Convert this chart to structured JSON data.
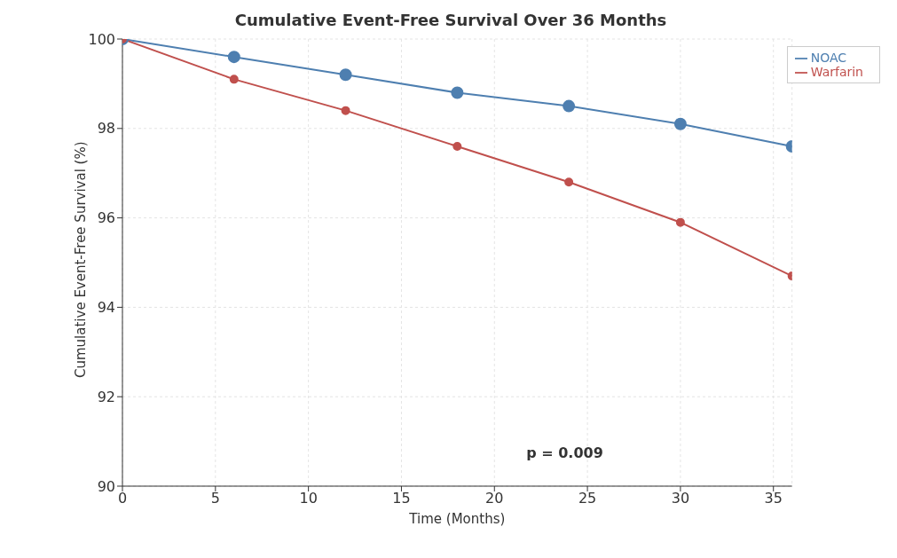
{
  "chart_data": {
    "type": "line",
    "title": "Cumulative Event-Free Survival Over 36 Months",
    "xlabel": "Time (Months)",
    "ylabel": "Cumulative Event-Free Survival (%)",
    "x": [
      0,
      6,
      12,
      18,
      24,
      30,
      36
    ],
    "series": [
      {
        "name": "NOAC",
        "color": "#4e7fb0",
        "values": [
          100,
          99.6,
          99.2,
          98.8,
          98.5,
          98.1,
          97.6
        ]
      },
      {
        "name": "Warfarin",
        "color": "#c0504d",
        "values": [
          100,
          99.1,
          98.4,
          97.6,
          96.8,
          95.9,
          94.7
        ]
      }
    ],
    "xlim": [
      0,
      36
    ],
    "xticks": [
      0,
      5,
      10,
      15,
      20,
      25,
      30,
      35
    ],
    "ylim": [
      90,
      100
    ],
    "yticks": [
      90,
      92,
      94,
      96,
      98,
      100
    ],
    "annotations": [
      "p = 0.009"
    ],
    "grid": true,
    "legend": "top right",
    "marker": "circle",
    "line_style": "solid"
  }
}
